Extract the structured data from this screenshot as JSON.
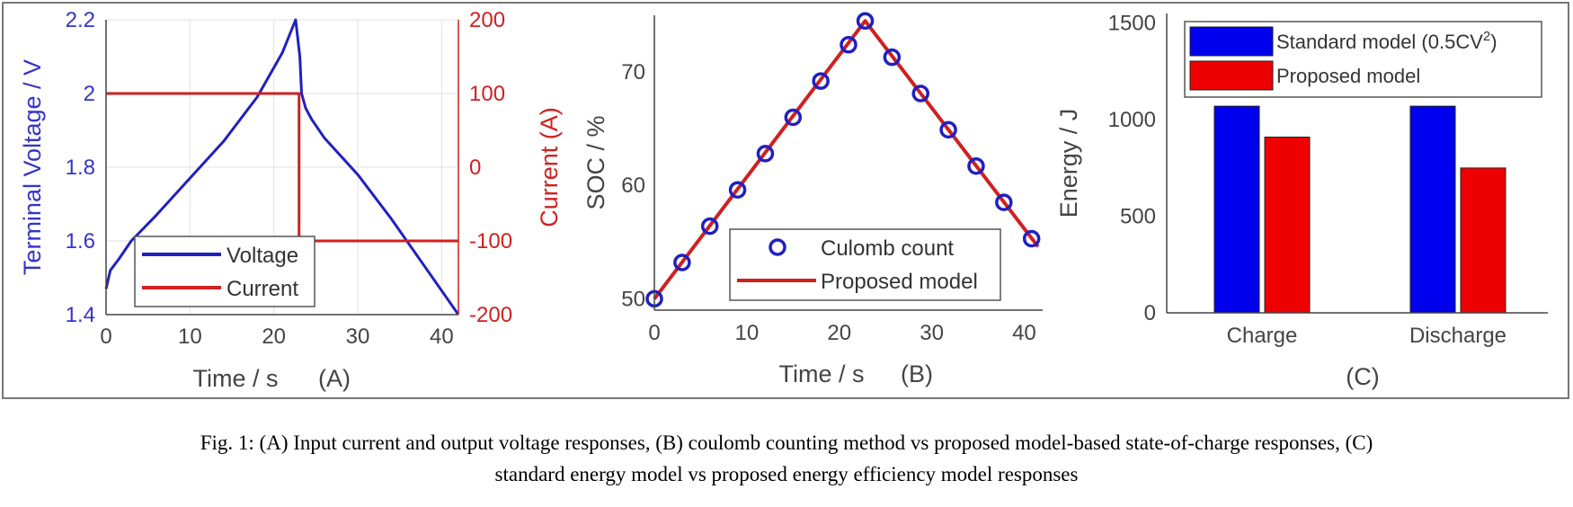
{
  "caption": {
    "line1": "Fig. 1: (A) Input current and output voltage responses, (B) coulomb counting method vs proposed model-based state-of-charge responses, (C)",
    "line2": "standard energy model vs proposed energy efficiency model responses"
  },
  "chart_data": [
    {
      "panel": "A",
      "type": "line",
      "panel_label": "(A)",
      "xlabel": "Time / s",
      "ylabel": "Terminal Voltage / V",
      "ylabel_right": "Current (A)",
      "xlim": [
        0,
        42
      ],
      "ylim": [
        1.4,
        2.2
      ],
      "ylim_right": [
        -200,
        200
      ],
      "xticks": [
        "0",
        "10",
        "20",
        "30",
        "40"
      ],
      "xtick_values": [
        0,
        10,
        20,
        30,
        40
      ],
      "yticks": [
        "1.4",
        "1.6",
        "1.8",
        "2",
        "2.2"
      ],
      "ytick_values": [
        1.4,
        1.6,
        1.8,
        2.0,
        2.2
      ],
      "yticks_right": [
        "-200",
        "-100",
        "0",
        "100",
        "200"
      ],
      "ytick_values_right": [
        -200,
        -100,
        0,
        100,
        200
      ],
      "grid": true,
      "legend_position": "bottom-left",
      "series": [
        {
          "name": "Voltage",
          "axis": "left",
          "color": "#2020c0",
          "x": [
            0,
            0.5,
            1.5,
            3,
            6,
            10,
            14,
            18,
            21,
            22.6,
            23.1,
            23.3,
            23.8,
            24.5,
            26,
            30,
            34,
            38,
            42
          ],
          "y": [
            1.47,
            1.52,
            1.55,
            1.6,
            1.67,
            1.77,
            1.87,
            1.99,
            2.11,
            2.2,
            2.1,
            2.0,
            1.96,
            1.93,
            1.88,
            1.78,
            1.66,
            1.53,
            1.4
          ]
        },
        {
          "name": "Current",
          "axis": "right",
          "color": "#d02020",
          "x": [
            0,
            23,
            23,
            42
          ],
          "y": [
            100,
            100,
            -100,
            -100
          ]
        }
      ]
    },
    {
      "panel": "B",
      "type": "line",
      "panel_label": "(B)",
      "xlabel": "Time / s",
      "ylabel": "SOC / %",
      "xlim": [
        0,
        42
      ],
      "ylim": [
        49,
        75
      ],
      "xticks": [
        "0",
        "10",
        "20",
        "30",
        "40"
      ],
      "xtick_values": [
        0,
        10,
        20,
        30,
        40
      ],
      "yticks": [
        "50",
        "60",
        "70"
      ],
      "ytick_values": [
        50,
        60,
        70
      ],
      "grid": false,
      "legend_position": "bottom-right",
      "series": [
        {
          "name": "Culomb count",
          "marker": "circle",
          "color": "#2020c0",
          "x": [
            0,
            3,
            6,
            9,
            12,
            15,
            18,
            21,
            22.8,
            25.7,
            28.8,
            31.8,
            34.8,
            37.8,
            40.8
          ],
          "y": [
            50,
            53.2,
            56.4,
            59.6,
            62.8,
            66.0,
            69.2,
            72.4,
            74.5,
            71.3,
            68.1,
            64.9,
            61.7,
            58.5,
            55.3
          ]
        },
        {
          "name": "Proposed model",
          "color": "#d02020",
          "x": [
            0,
            22.8,
            41.5
          ],
          "y": [
            50,
            74.5,
            54.6
          ]
        }
      ]
    },
    {
      "panel": "C",
      "type": "bar",
      "panel_label": "(C)",
      "xlabel": "",
      "ylabel": "Energy / J",
      "ylim": [
        0,
        1550
      ],
      "yticks": [
        "0",
        "500",
        "1000",
        "1500"
      ],
      "ytick_values": [
        0,
        500,
        1000,
        1500
      ],
      "categories": [
        "Charge",
        "Discharge"
      ],
      "grid": false,
      "legend_position": "top",
      "series": [
        {
          "name": "Standard model (0.5CV",
          "name_sup": "2",
          "name_tail": ")",
          "color": "#0000ee",
          "values": [
            1070,
            1070
          ]
        },
        {
          "name": "Proposed model",
          "color": "#ee0000",
          "values": [
            910,
            750
          ]
        }
      ]
    }
  ]
}
